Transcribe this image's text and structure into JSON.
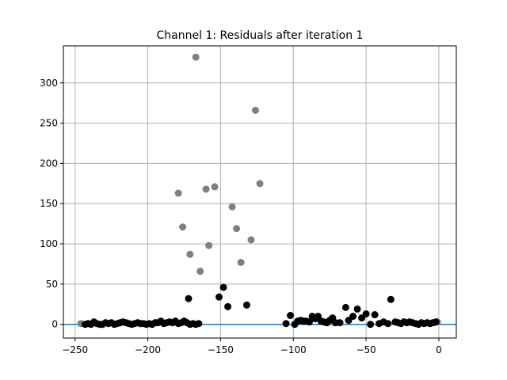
{
  "chart_data": {
    "type": "scatter",
    "title": "Channel 1: Residuals after iteration 1",
    "xlabel": "",
    "ylabel": "",
    "xlim": [
      -258,
      12
    ],
    "ylim": [
      -17,
      346
    ],
    "xticks": [
      -250,
      -200,
      -150,
      -100,
      -50,
      0
    ],
    "yticks": [
      0,
      50,
      100,
      150,
      200,
      250,
      300
    ],
    "grid": true,
    "reference_line": {
      "y": 0,
      "color": "#1f77b4"
    },
    "series": [
      {
        "color": "#808080",
        "points": [
          [
            -246,
            1
          ],
          [
            -167,
            332
          ],
          [
            -126,
            266
          ],
          [
            -179,
            163
          ],
          [
            -160,
            168
          ],
          [
            -154,
            171
          ],
          [
            -123,
            175
          ],
          [
            -142,
            146
          ],
          [
            -176,
            121
          ],
          [
            -139,
            119
          ],
          [
            -129,
            105
          ],
          [
            -158,
            98
          ],
          [
            -171,
            87
          ],
          [
            -136,
            77
          ],
          [
            -164,
            66
          ],
          [
            -1,
            3
          ]
        ]
      },
      {
        "color": "#000000",
        "points": [
          [
            -243,
            0
          ],
          [
            -241,
            1
          ],
          [
            -239,
            0
          ],
          [
            -237,
            3
          ],
          [
            -235,
            1
          ],
          [
            -233,
            0
          ],
          [
            -231,
            0
          ],
          [
            -229,
            2
          ],
          [
            -227,
            1
          ],
          [
            -225,
            2
          ],
          [
            -223,
            0
          ],
          [
            -221,
            1
          ],
          [
            -219,
            2
          ],
          [
            -217,
            3
          ],
          [
            -215,
            2
          ],
          [
            -213,
            1
          ],
          [
            -211,
            0
          ],
          [
            -209,
            1
          ],
          [
            -207,
            2
          ],
          [
            -205,
            1
          ],
          [
            -203,
            1
          ],
          [
            -201,
            0
          ],
          [
            -199,
            1
          ],
          [
            -197,
            0
          ],
          [
            -195,
            2
          ],
          [
            -193,
            2
          ],
          [
            -191,
            4
          ],
          [
            -189,
            1
          ],
          [
            -187,
            2
          ],
          [
            -185,
            3
          ],
          [
            -183,
            2
          ],
          [
            -181,
            4
          ],
          [
            -179,
            1
          ],
          [
            -177,
            2
          ],
          [
            -175,
            4
          ],
          [
            -173,
            2
          ],
          [
            -172,
            32
          ],
          [
            -171,
            0
          ],
          [
            -169,
            1
          ],
          [
            -167,
            0
          ],
          [
            -165,
            1
          ],
          [
            -151,
            34
          ],
          [
            -148,
            46
          ],
          [
            -145,
            22
          ],
          [
            -132,
            24
          ],
          [
            -105,
            1
          ],
          [
            -102,
            11
          ],
          [
            -99,
            0
          ],
          [
            -97,
            4
          ],
          [
            -95,
            5
          ],
          [
            -93,
            4
          ],
          [
            -91,
            4
          ],
          [
            -89,
            3
          ],
          [
            -87,
            10
          ],
          [
            -85,
            7
          ],
          [
            -83,
            10
          ],
          [
            -81,
            4
          ],
          [
            -79,
            3
          ],
          [
            -77,
            2
          ],
          [
            -75,
            5
          ],
          [
            -73,
            8
          ],
          [
            -71,
            2
          ],
          [
            -68,
            2
          ],
          [
            -64,
            21
          ],
          [
            -62,
            5
          ],
          [
            -59,
            10
          ],
          [
            -56,
            19
          ],
          [
            -53,
            8
          ],
          [
            -50,
            13
          ],
          [
            -47,
            0
          ],
          [
            -44,
            12
          ],
          [
            -41,
            1
          ],
          [
            -38,
            3
          ],
          [
            -35,
            1
          ],
          [
            -33,
            31
          ],
          [
            -30,
            3
          ],
          [
            -28,
            2
          ],
          [
            -26,
            1
          ],
          [
            -24,
            3
          ],
          [
            -22,
            2
          ],
          [
            -20,
            3
          ],
          [
            -18,
            2
          ],
          [
            -16,
            1
          ],
          [
            -14,
            0
          ],
          [
            -12,
            2
          ],
          [
            -10,
            1
          ],
          [
            -8,
            2
          ],
          [
            -6,
            1
          ],
          [
            -4,
            2
          ],
          [
            -2,
            3
          ]
        ]
      }
    ]
  }
}
